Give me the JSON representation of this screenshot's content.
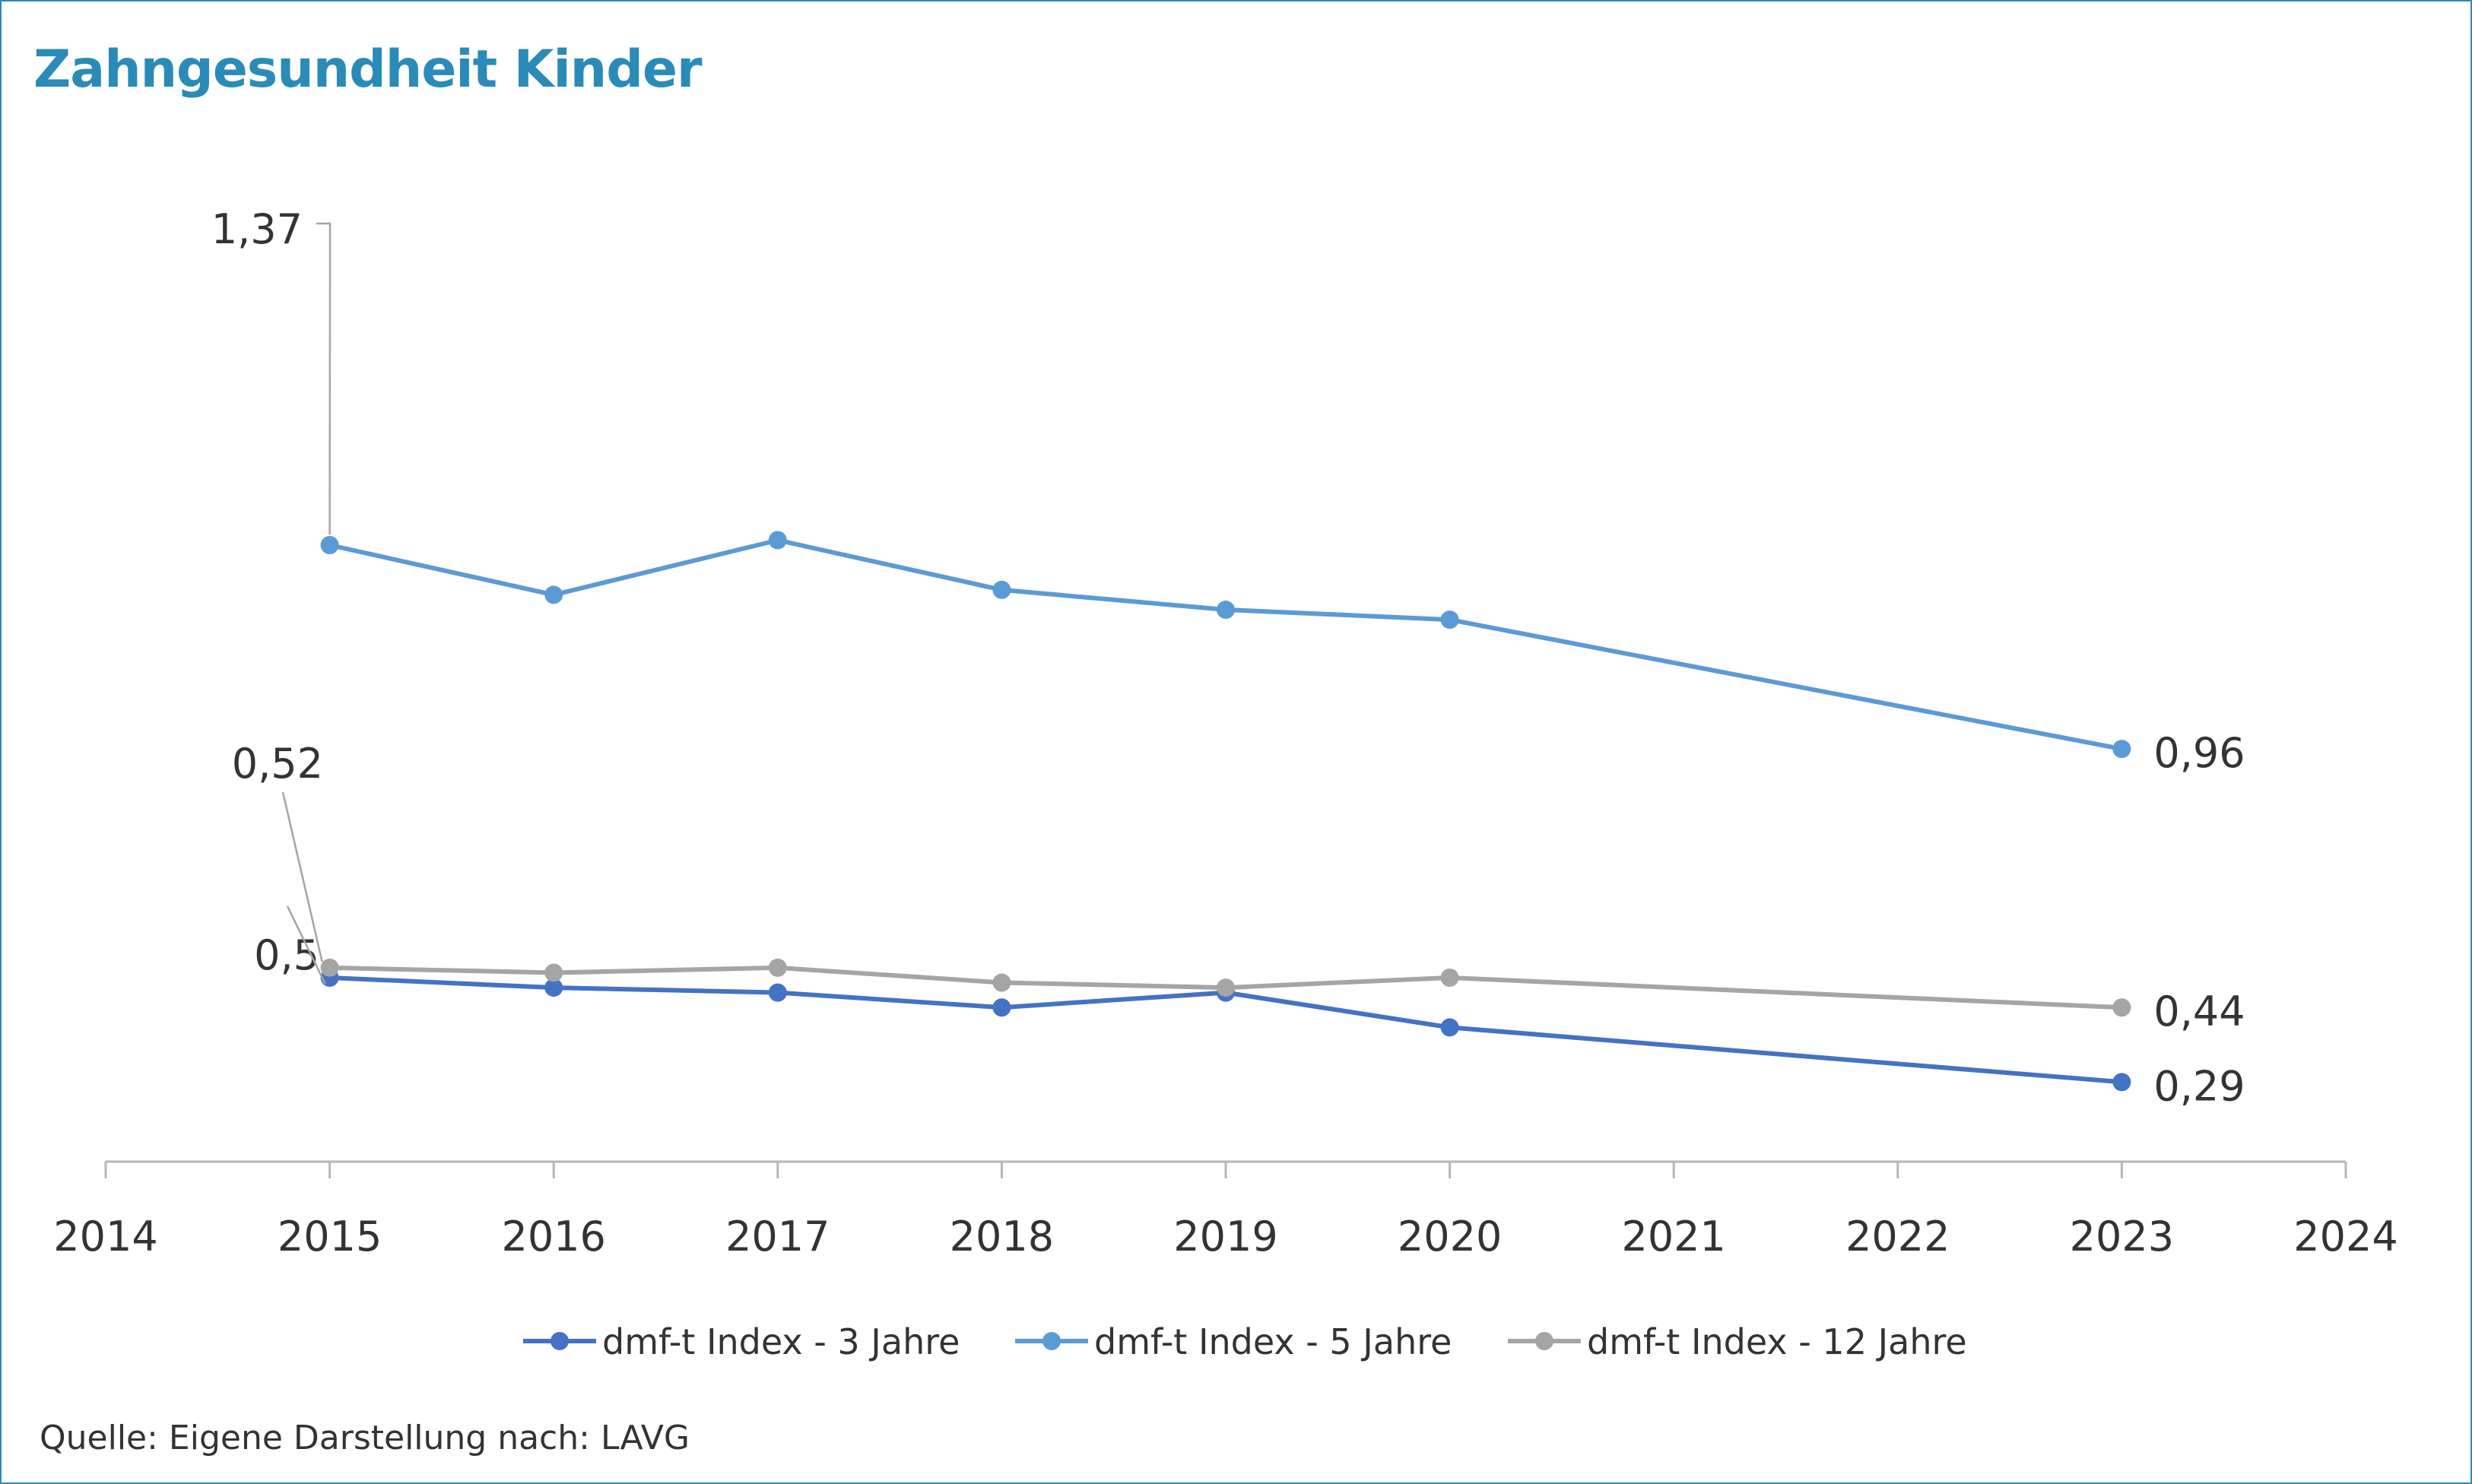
{
  "title": "Zahngesundheit Kinder",
  "source": "Quelle: Eigene Darstellung nach: LAVG",
  "chart_data": {
    "type": "line",
    "title": "Zahngesundheit Kinder",
    "xlabel": "",
    "ylabel": "",
    "xlim": [
      2014,
      2024
    ],
    "x_ticks": [
      2014,
      2015,
      2016,
      2017,
      2018,
      2019,
      2020,
      2021,
      2022,
      2023,
      2024
    ],
    "grid": false,
    "legend_position": "bottom",
    "series": [
      {
        "name": "dmf-t Index - 3 Jahre",
        "color": "#4472c4",
        "x": [
          2015,
          2016,
          2017,
          2018,
          2019,
          2020,
          2023
        ],
        "y": [
          0.5,
          0.48,
          0.47,
          0.44,
          0.47,
          0.4,
          0.29
        ],
        "labels": [
          {
            "index": 0,
            "text": "0,5"
          },
          {
            "index": 6,
            "text": "0,29"
          }
        ]
      },
      {
        "name": "dmf-t Index - 5 Jahre",
        "color": "#5b9bd5",
        "x": [
          2015,
          2016,
          2017,
          2018,
          2019,
          2020,
          2023
        ],
        "y": [
          1.37,
          1.27,
          1.38,
          1.28,
          1.24,
          1.22,
          0.96
        ],
        "labels": [
          {
            "index": 0,
            "text": "1,37"
          },
          {
            "index": 6,
            "text": "0,96"
          }
        ]
      },
      {
        "name": "dmf-t Index - 12 Jahre",
        "color": "#a5a5a5",
        "x": [
          2015,
          2016,
          2017,
          2018,
          2019,
          2020,
          2023
        ],
        "y": [
          0.52,
          0.51,
          0.52,
          0.49,
          0.48,
          0.5,
          0.44
        ],
        "labels": [
          {
            "index": 0,
            "text": "0,52"
          },
          {
            "index": 6,
            "text": "0,44"
          }
        ]
      }
    ]
  }
}
